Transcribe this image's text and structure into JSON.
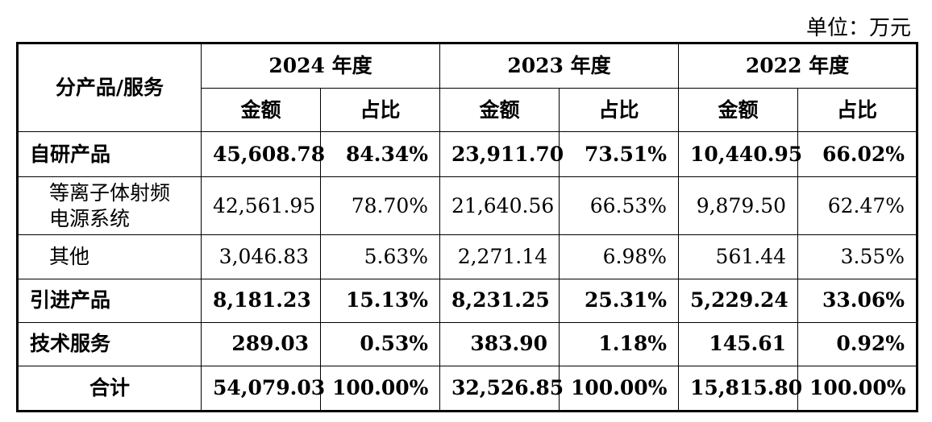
{
  "unit_label": "单位：万元",
  "header": {
    "category_label": "分产品/服务",
    "years": [
      "2024 年度",
      "2023 年度",
      "2022 年度"
    ],
    "amount_label": "金额",
    "ratio_label": "占比"
  },
  "rows": [
    {
      "name": "自研产品",
      "values": [
        "45,608.78",
        "84.34%",
        "23,911.70",
        "73.51%",
        "10,440.95",
        "66.02%"
      ]
    },
    {
      "name": "等离子体射频电源系统",
      "values": [
        "42,561.95",
        "78.70%",
        "21,640.56",
        "66.53%",
        "9,879.50",
        "62.47%"
      ]
    },
    {
      "name": "其他",
      "values": [
        "3,046.83",
        "5.63%",
        "2,271.14",
        "6.98%",
        "561.44",
        "3.55%"
      ]
    },
    {
      "name": "引进产品",
      "values": [
        "8,181.23",
        "15.13%",
        "8,231.25",
        "25.31%",
        "5,229.24",
        "33.06%"
      ]
    },
    {
      "name": "技术服务",
      "values": [
        "289.03",
        "0.53%",
        "383.90",
        "1.18%",
        "145.61",
        "0.92%"
      ]
    },
    {
      "name": "合计",
      "values": [
        "54,079.03",
        "100.00%",
        "32,526.85",
        "100.00%",
        "15,815.80",
        "100.00%"
      ]
    }
  ]
}
